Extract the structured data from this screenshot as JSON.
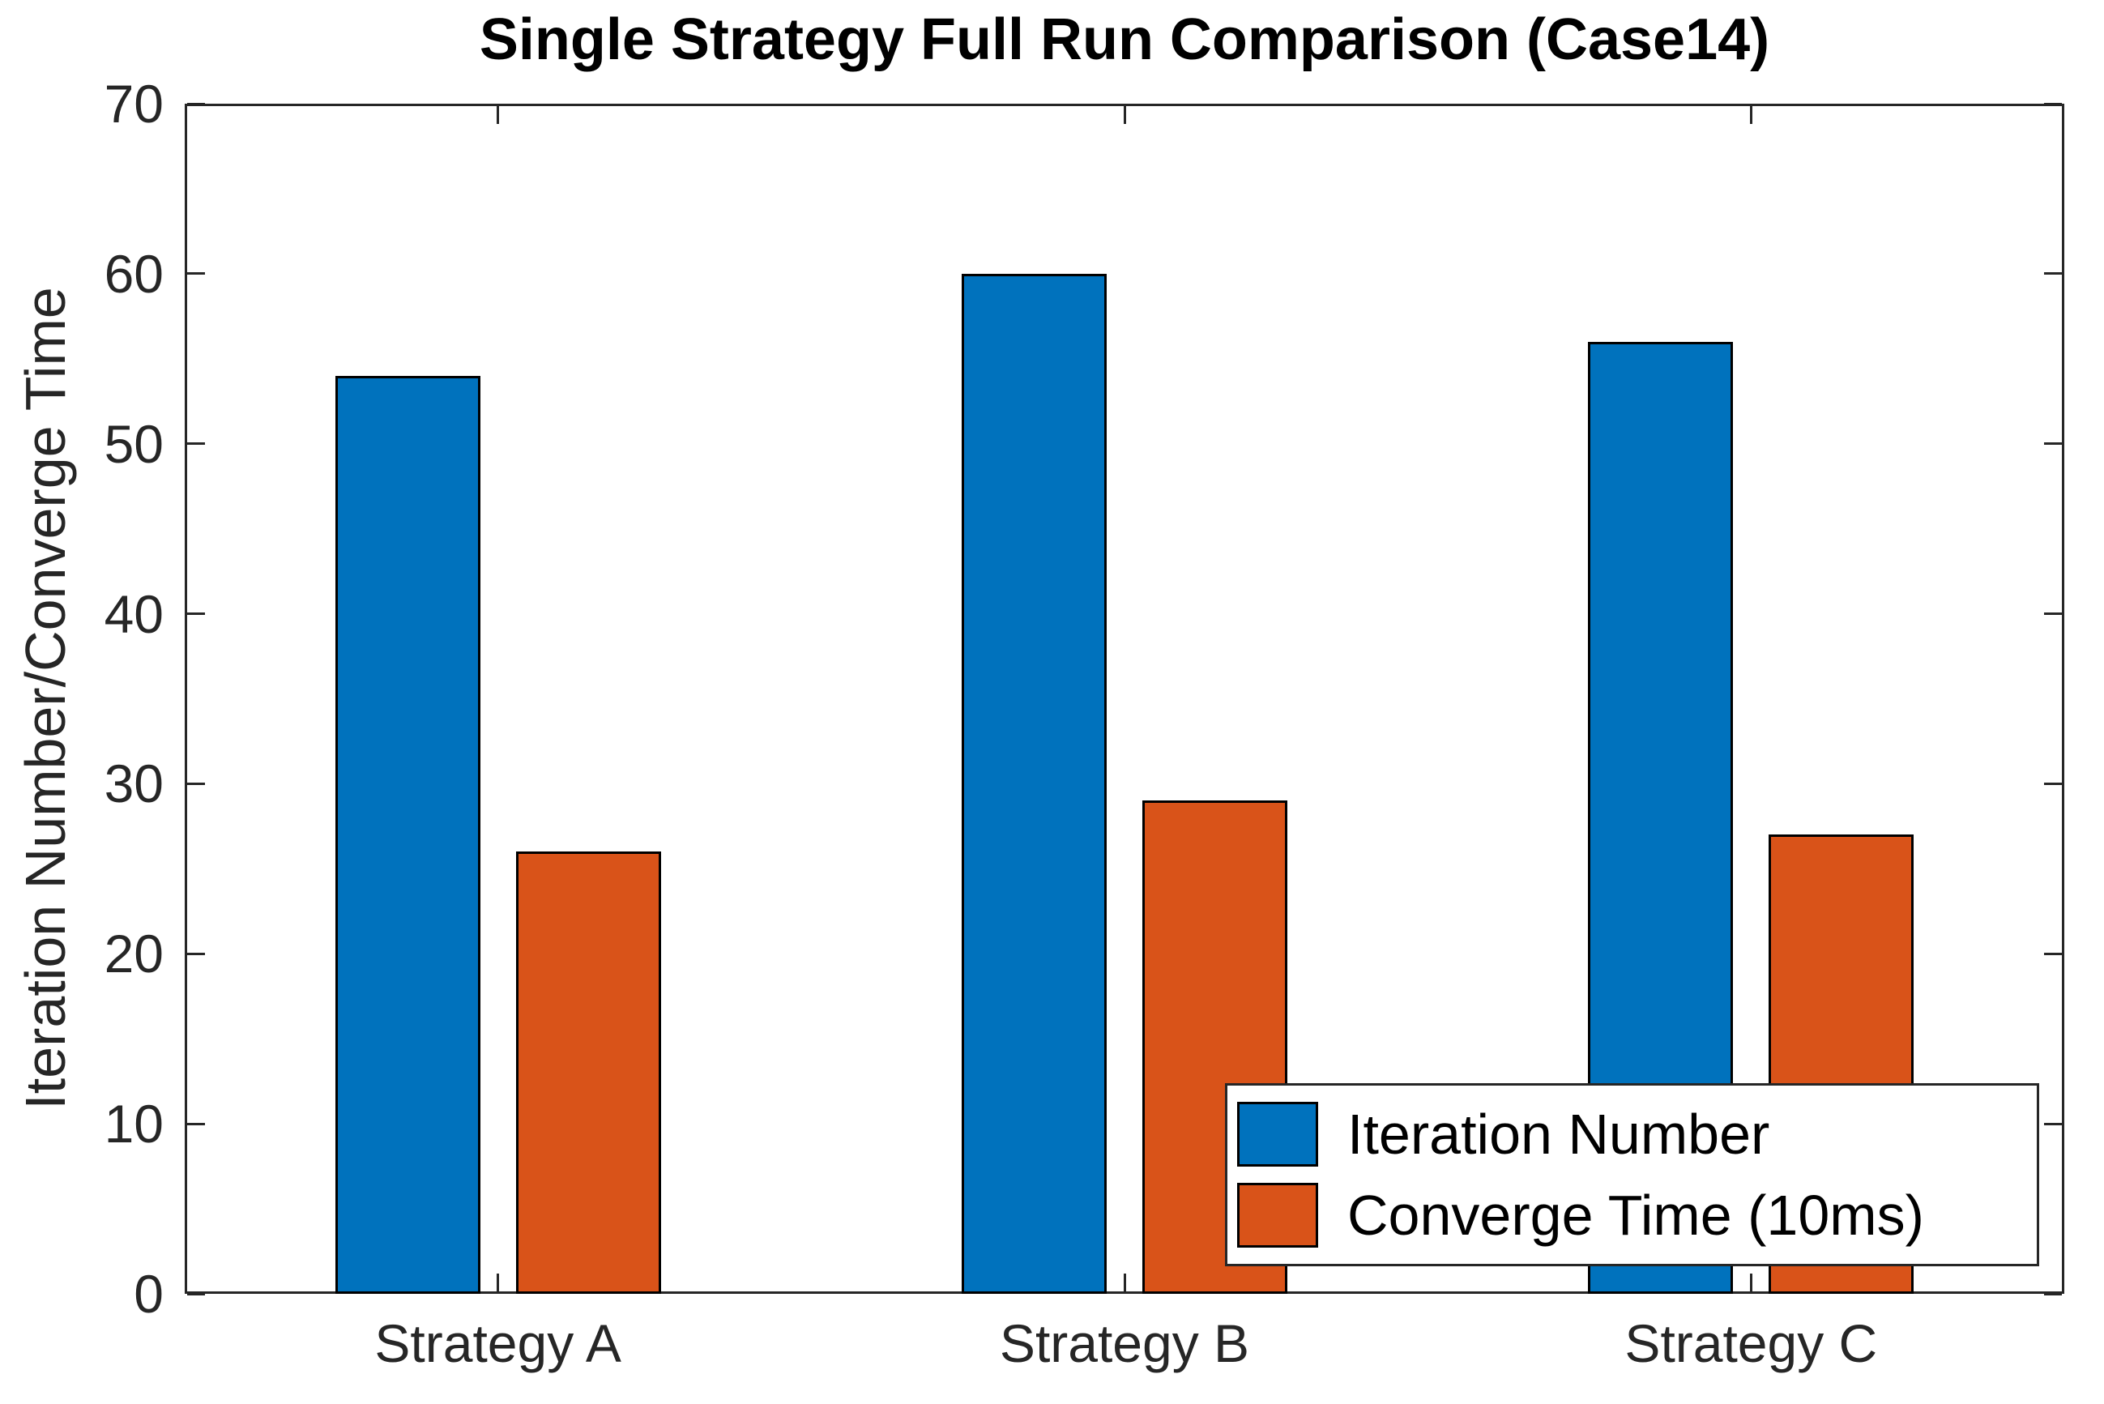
{
  "chart_data": {
    "type": "bar",
    "title": "Single Strategy Full Run Comparison (Case14)",
    "ylabel": "Iteration Number/Converge Time",
    "xlabel": "",
    "categories": [
      "Strategy A",
      "Strategy B",
      "Strategy C"
    ],
    "series": [
      {
        "name": "Iteration Number",
        "color": "#0072BD",
        "values": [
          54,
          60,
          56
        ]
      },
      {
        "name": "Converge Time (10ms)",
        "color": "#D95319",
        "values": [
          26,
          29,
          27
        ]
      }
    ],
    "ylim": [
      0,
      70
    ],
    "yticks": [
      0,
      10,
      20,
      30,
      40,
      50,
      60,
      70
    ],
    "grid": false,
    "legend_position": "lower-right-inside",
    "axis_color": "#262626",
    "bar_edge_color": "#000000",
    "background_color": "#ffffff"
  }
}
